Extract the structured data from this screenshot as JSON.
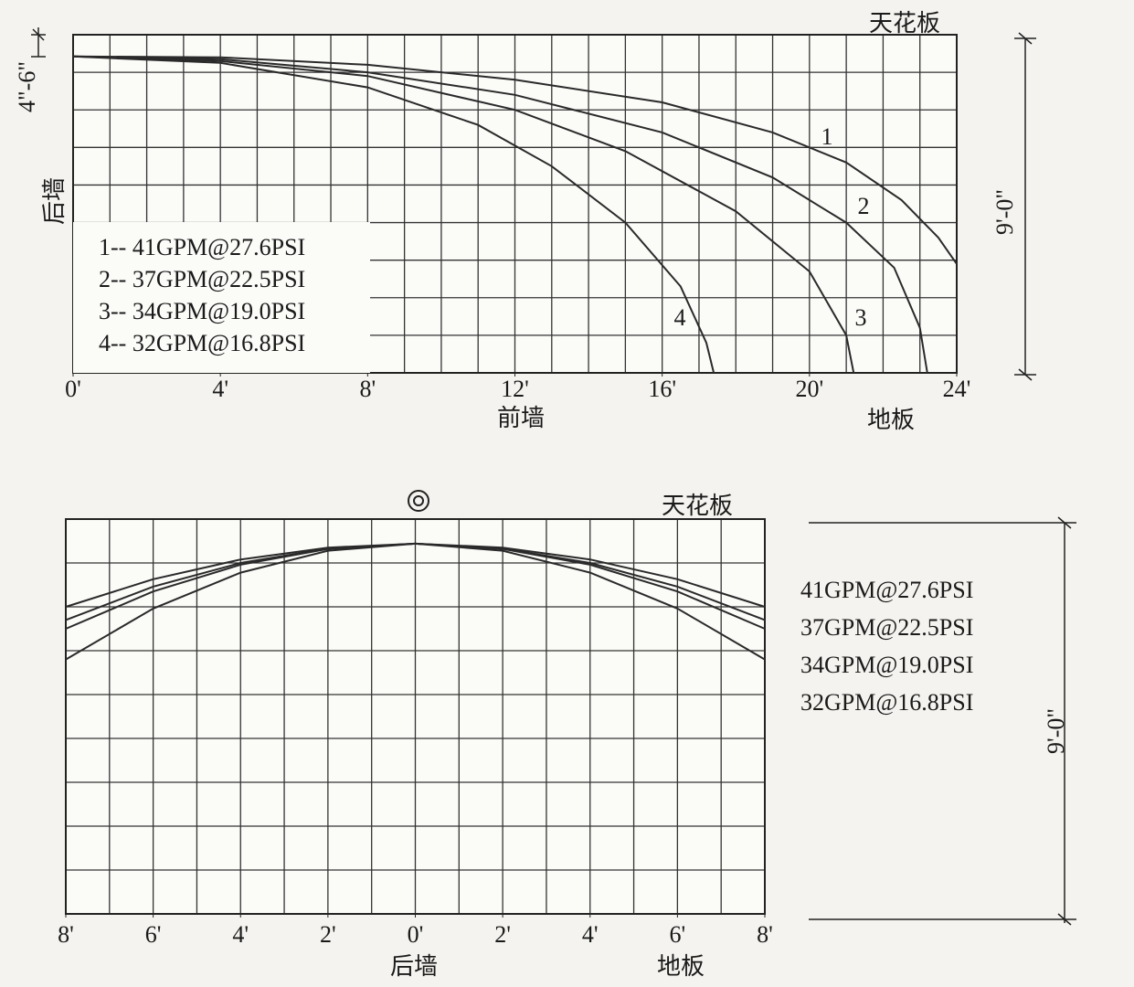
{
  "chart_data": [
    {
      "type": "line",
      "xlim": [
        0,
        24
      ],
      "ylim": [
        0,
        9
      ],
      "grid_spacing": 1,
      "xticks": [
        {
          "value": 0,
          "label": "0'"
        },
        {
          "value": 4,
          "label": "4'"
        },
        {
          "value": 8,
          "label": "8'"
        },
        {
          "value": 12,
          "label": "12'"
        },
        {
          "value": 16,
          "label": "16'"
        },
        {
          "value": 20,
          "label": "20'"
        },
        {
          "value": 24,
          "label": "24'"
        }
      ],
      "annotations": [
        "天花板",
        "前墙",
        "地板",
        "后墙",
        "4\"-6\"",
        "9'-0\"",
        "1",
        "2",
        "3",
        "4"
      ],
      "series": [
        {
          "name": "1-- 41GPM@27.6PSI",
          "color": "#2a2a2a",
          "x": [
            0,
            4,
            8,
            12,
            16,
            19,
            21,
            22.5,
            23.5,
            24
          ],
          "values": [
            8.42,
            8.4,
            8.2,
            7.8,
            7.2,
            6.4,
            5.6,
            4.6,
            3.6,
            2.9
          ]
        },
        {
          "name": "2-- 37GPM@22.5PSI",
          "color": "#2a2a2a",
          "x": [
            0,
            4,
            8,
            12,
            16,
            19,
            21,
            22.3,
            23,
            23.2
          ],
          "values": [
            8.42,
            8.35,
            8.0,
            7.4,
            6.4,
            5.2,
            4.0,
            2.8,
            1.2,
            0
          ]
        },
        {
          "name": "3-- 34GPM@19.0PSI",
          "color": "#2a2a2a",
          "x": [
            0,
            4,
            8,
            12,
            15,
            18,
            20,
            21,
            21.2
          ],
          "values": [
            8.42,
            8.3,
            7.9,
            7.0,
            5.9,
            4.3,
            2.7,
            1.0,
            0
          ]
        },
        {
          "name": "4-- 32GPM@16.8PSI",
          "color": "#2a2a2a",
          "x": [
            0,
            4,
            8,
            11,
            13,
            15,
            16.5,
            17.2,
            17.4
          ],
          "values": [
            8.42,
            8.25,
            7.6,
            6.6,
            5.5,
            4.0,
            2.3,
            0.8,
            0
          ]
        }
      ]
    },
    {
      "type": "line",
      "xlim": [
        -8,
        8
      ],
      "ylim": [
        0,
        9
      ],
      "grid_spacing": 1,
      "xticks": [
        {
          "value": -8,
          "label": "8'"
        },
        {
          "value": -6,
          "label": "6'"
        },
        {
          "value": -4,
          "label": "4'"
        },
        {
          "value": -2,
          "label": "2'"
        },
        {
          "value": 0,
          "label": "0'"
        },
        {
          "value": 2,
          "label": "2'"
        },
        {
          "value": 4,
          "label": "4'"
        },
        {
          "value": 6,
          "label": "6'"
        },
        {
          "value": 8,
          "label": "8'"
        }
      ],
      "annotations": [
        "天花板",
        "后墙",
        "地板",
        "9'-0\""
      ],
      "series": [
        {
          "name": "41GPM@27.6PSI",
          "color": "#2a2a2a",
          "x": [
            -8,
            -6,
            -4,
            -2,
            0,
            2,
            4,
            6,
            8
          ],
          "values": [
            7.0,
            7.63,
            8.08,
            8.35,
            8.44,
            8.35,
            8.08,
            7.63,
            7.0
          ]
        },
        {
          "name": "37GPM@22.5PSI",
          "color": "#2a2a2a",
          "x": [
            -8,
            -6,
            -4,
            -2,
            0,
            2,
            4,
            6,
            8
          ],
          "values": [
            6.7,
            7.46,
            8.0,
            8.33,
            8.44,
            8.33,
            8.0,
            7.46,
            6.7
          ]
        },
        {
          "name": "34GPM@19.0PSI",
          "color": "#2a2a2a",
          "x": [
            -8,
            -6,
            -4,
            -2,
            0,
            2,
            4,
            6,
            8
          ],
          "values": [
            6.5,
            7.35,
            7.96,
            8.32,
            8.44,
            8.32,
            7.96,
            7.35,
            6.5
          ]
        },
        {
          "name": "32GPM@16.8PSI",
          "color": "#2a2a2a",
          "x": [
            -8,
            -6,
            -4,
            -2,
            0,
            2,
            4,
            6,
            8
          ],
          "values": [
            5.8,
            6.96,
            7.78,
            8.28,
            8.44,
            8.28,
            7.78,
            6.96,
            5.8
          ]
        }
      ]
    }
  ]
}
